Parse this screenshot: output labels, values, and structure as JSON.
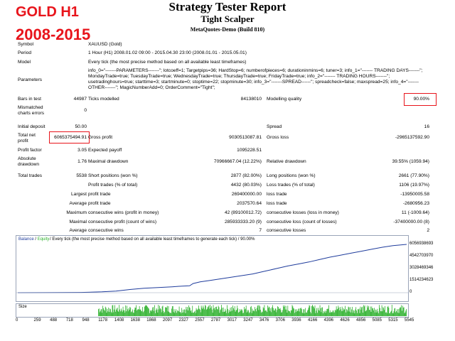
{
  "overlay": {
    "line1": "GOLD H1",
    "line2": "2008-2015"
  },
  "header": {
    "title": "Strategy Tester Report",
    "ea_name": "Tight Scalper",
    "server": "MetaQuotes-Demo (Build 810)"
  },
  "info": {
    "symbol_label": "Symbol",
    "symbol_value": "XAUUSD (Gold)",
    "period_label": "Period",
    "period_value": "1 Hour (H1) 2008.01.02 09:00 - 2015.04.30 23:00 (2008.01.01 - 2015.05.01)",
    "model_label": "Model",
    "model_value": "Every tick (the most precise method based on all available least timeframes)",
    "parameters_label": "Parameters",
    "parameters_value": "info_0=\"-------PARAMETERS-------\"; lotcoeff=1; Targetpips=36; HardStop=6; numberofpieces=6; durationinmins=6; tuner=3; info_1=\"------- TRADING DAYS-------\"; MondayTrade=true; TuesdayTrade=true; WednesdayTrade=true; ThursdayTrade=true; FridayTrade=true; info_2=\"------- TRADING HOURS-------\"; usetradinghours=true; starttime=3; startminute=0; stoptime=22; stopminute=30; info_3=\"-------SPREAD------\"; spreadcheck=false; maxspread=25; info_4=\"-------OTHER-------\"; MagicNumberAdd=0; OrderComment=\"Tight\";"
  },
  "stats": {
    "bars_label": "Bars in test",
    "bars_value": "44987",
    "ticks_label": "Ticks modelled",
    "ticks_value": "84138010",
    "quality_label": "Modelling quality",
    "quality_value": "90.00%",
    "mismatch_label1": "Mismatched",
    "mismatch_label2": "charts errors",
    "mismatch_value": "0",
    "deposit_label": "Initial deposit",
    "deposit_value": "50.00",
    "spread_label": "Spread",
    "spread_value": "16",
    "netprofit_label1": "Total net",
    "netprofit_label2": "profit",
    "netprofit_value": "6065375494.91",
    "grossprofit_label": "Gross profit",
    "grossprofit_value": "9030513087.81",
    "grossloss_label": "Gross loss",
    "grossloss_value": "-2965137592.90",
    "pf_label": "Profit factor",
    "pf_value": "3.05",
    "payoff_label": "Expected payoff",
    "payoff_value": "1095228.51",
    "absdd_label1": "Absolute",
    "absdd_label2": "drawdown",
    "absdd_value": "1.76",
    "maxdd_label": "Maximal drawdown",
    "maxdd_value": "70966667.04 (12.22%)",
    "reldd_label": "Relative drawdown",
    "reldd_value": "39.55% (1059.94)",
    "trades_label": "Total trades",
    "trades_value": "5538",
    "short_label": "Short positions (won %)",
    "short_value": "2877 (82.00%)",
    "long_label": "Long positions (won %)",
    "long_value": "2661 (77.90%)",
    "profit_trades_label": "Profit trades (% of total)",
    "profit_trades_value": "4432 (80.03%)",
    "loss_trades_label": "Loss trades (% of total)",
    "loss_trades_value": "1106 (19.97%)",
    "largest_label": "Largest",
    "largest_profit_label": "profit trade",
    "largest_profit_value": "269400000.00",
    "largest_loss_label": "loss trade",
    "largest_loss_value": "-13950005.58",
    "average_label": "Average",
    "avg_profit_label": "profit trade",
    "avg_profit_value": "2037570.64",
    "avg_loss_label": "loss trade",
    "avg_loss_value": "-2680956.23",
    "maximum_label": "Maximum",
    "max_wins_label": "consecutive wins (profit in money)",
    "max_wins_value": "42 (89100012.72)",
    "max_losses_label": "consecutive losses (loss in money)",
    "max_losses_value": "11 (-1009.64)",
    "maximal_label": "Maximal",
    "maximal_profit_label": "consecutive profit (count of wins)",
    "maximal_profit_value": "285933333.20 (9)",
    "maximal_loss_label": "consecutive loss (count of losses)",
    "maximal_loss_value": "-37400000.00 (8)",
    "average2_label": "Average",
    "avg_wins_label": "consecutive wins",
    "avg_wins_value": "7",
    "avg_losses_label": "consecutive losses",
    "avg_losses_value": "2"
  },
  "chart_data": {
    "type": "line",
    "title": "Balance / Equity / Every tick (the most precise method based on all available least timeframes to generate each tick) / 90.00%",
    "legend": [
      {
        "name": "Balance",
        "color": "#1f3c9c"
      },
      {
        "name": "Equity",
        "color": "#2bb02b"
      }
    ],
    "ytick_labels": [
      "6056938693",
      "4542703970",
      "3028469346",
      "1514234623",
      "0"
    ],
    "ylim": [
      0,
      6056938693
    ],
    "x_tick_labels": [
      "0",
      "259",
      "488",
      "718",
      "948",
      "1178",
      "1408",
      "1638",
      "1868",
      "2097",
      "2327",
      "2557",
      "2787",
      "3017",
      "3247",
      "3476",
      "3706",
      "3936",
      "4166",
      "4396",
      "4626",
      "4856",
      "5085",
      "5315",
      "5545"
    ],
    "xlim": [
      0,
      5545
    ],
    "series": [
      {
        "name": "Balance",
        "color": "#1f3c9c",
        "x": [
          0,
          400,
          900,
          1200,
          1400,
          1500,
          1600,
          1700,
          1800,
          1900,
          2000,
          2100,
          2200,
          2300,
          2450,
          2500,
          2600,
          2750,
          2900,
          3050,
          3200,
          3350,
          3450,
          3550,
          3700,
          3850,
          4000,
          4150,
          4300,
          4450,
          4600,
          4750,
          4900,
          5050,
          5200,
          5350,
          5545
        ],
        "y": [
          0,
          5000000,
          40000000,
          110000000,
          200000000,
          300000000,
          400000000,
          480000000,
          550000000,
          600000000,
          640000000,
          690000000,
          740000000,
          800000000,
          860000000,
          1150000000,
          1350000000,
          1550000000,
          1750000000,
          1950000000,
          2150000000,
          2350000000,
          2550000000,
          2750000000,
          3050000000,
          3350000000,
          3600000000,
          3850000000,
          4150000000,
          4450000000,
          4700000000,
          4950000000,
          5200000000,
          5450000000,
          5700000000,
          5900000000,
          6056938693
        ]
      }
    ],
    "size_panel": {
      "label": "Size"
    }
  },
  "colors": {
    "accent_red": "#e8141b",
    "balance": "#1f3c9c",
    "equity": "#2bb02b",
    "size": "#2bb02b"
  }
}
